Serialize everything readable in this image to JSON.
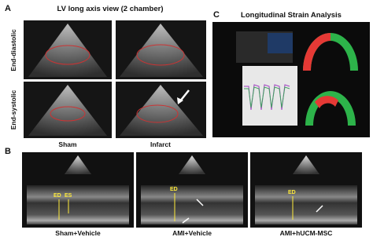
{
  "panels": {
    "a": {
      "label": "A",
      "title": "LV long axis view (2 chamber)",
      "rows": [
        "End-diastolic",
        "End-systolic"
      ],
      "columns": [
        "Sham",
        "Infarct"
      ]
    },
    "b": {
      "label": "B",
      "images": [
        {
          "caption": "Sham+Vehicle",
          "markers": [
            "ED",
            "ES"
          ]
        },
        {
          "caption": "AMI+Vehicle",
          "markers": [
            "ED"
          ]
        },
        {
          "caption": "AMI+hUCM-MSC",
          "markers": [
            "ED"
          ]
        }
      ]
    },
    "c": {
      "label": "C",
      "title": "Longitudinal Strain Analysis"
    }
  }
}
